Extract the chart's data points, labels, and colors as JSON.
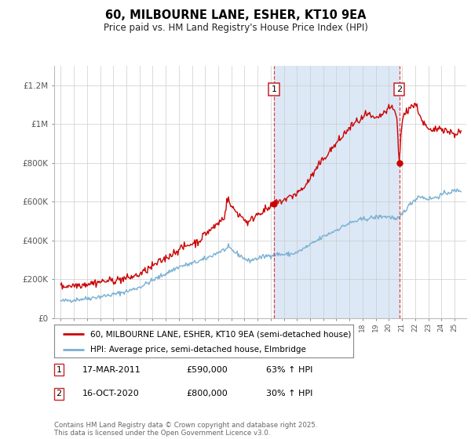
{
  "title": "60, MILBOURNE LANE, ESHER, KT10 9EA",
  "subtitle": "Price paid vs. HM Land Registry's House Price Index (HPI)",
  "ylabel_ticks": [
    "£0",
    "£200K",
    "£400K",
    "£600K",
    "£800K",
    "£1M",
    "£1.2M"
  ],
  "ylim": [
    0,
    1300000
  ],
  "yticks": [
    0,
    200000,
    400000,
    600000,
    800000,
    1000000,
    1200000
  ],
  "legend_line1": "60, MILBOURNE LANE, ESHER, KT10 9EA (semi-detached house)",
  "legend_line2": "HPI: Average price, semi-detached house, Elmbridge",
  "annotation1_label": "1",
  "annotation1_date": "17-MAR-2011",
  "annotation1_price": "£590,000",
  "annotation1_pct": "63% ↑ HPI",
  "annotation2_label": "2",
  "annotation2_date": "16-OCT-2020",
  "annotation2_price": "£800,000",
  "annotation2_pct": "30% ↑ HPI",
  "footnote": "Contains HM Land Registry data © Crown copyright and database right 2025.\nThis data is licensed under the Open Government Licence v3.0.",
  "line1_color": "#cc0000",
  "line2_color": "#7ab0d4",
  "vline_color": "#dd4444",
  "shade_color": "#dce8f5",
  "plot_bg": "#ffffff",
  "marker1_x": 2011.25,
  "marker1_y": 590000,
  "marker2_x": 2020.79,
  "marker2_y": 800000,
  "vline1_x": 2011.25,
  "vline2_x": 2020.79,
  "xlim_left": 1994.5,
  "xlim_right": 2025.9
}
